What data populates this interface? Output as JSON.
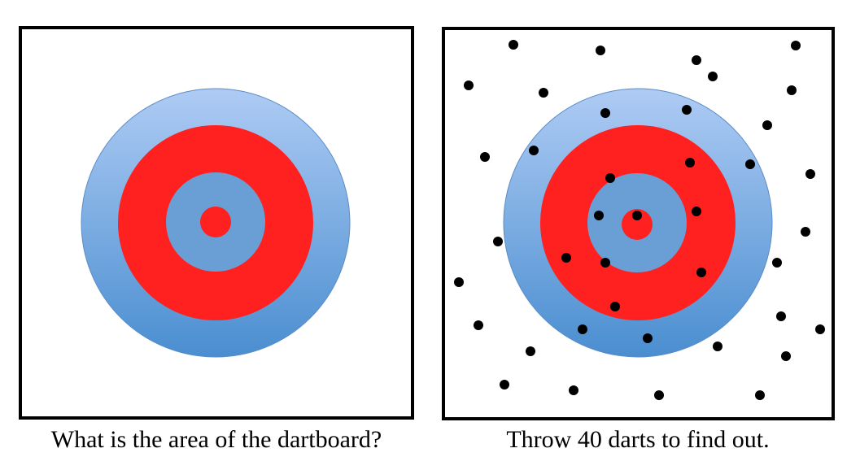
{
  "left_panel": {
    "caption": "What is the area of the dartboard?"
  },
  "right_panel": {
    "caption": "Throw 40 darts to find out.",
    "dart_count": 40
  },
  "colors": {
    "outer_ring_top": "#aecbf4",
    "outer_ring_bottom": "#4a8ed0",
    "red_ring": "#ff2020",
    "inner_ring": "#6a9fd6",
    "bullseye": "#ff2020",
    "frame": "#000000",
    "dart": "#000000"
  }
}
